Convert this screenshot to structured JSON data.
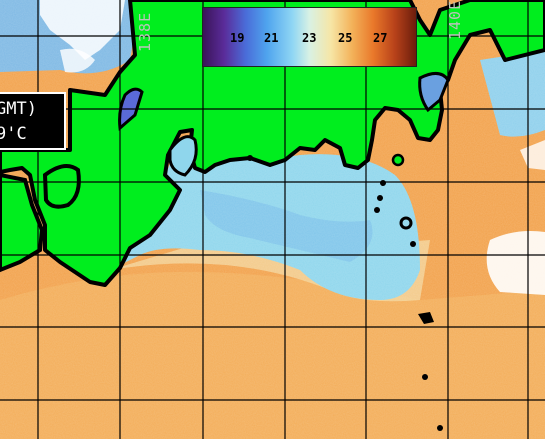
{
  "map": {
    "longitude_labels": [
      "138E",
      "140E"
    ],
    "colorbar": {
      "ticks": [
        "19",
        "21",
        "23",
        "25",
        "27"
      ],
      "colors": [
        "#3a1458",
        "#4a6cd8",
        "#8fd6f4",
        "#f6e6a6",
        "#e9782a",
        "#6b1d0c"
      ]
    },
    "info_box": {
      "line1": "GMT)",
      "line2": "9'C"
    },
    "land_color": "#00ee1e",
    "cloud_color": "#ffffff"
  }
}
